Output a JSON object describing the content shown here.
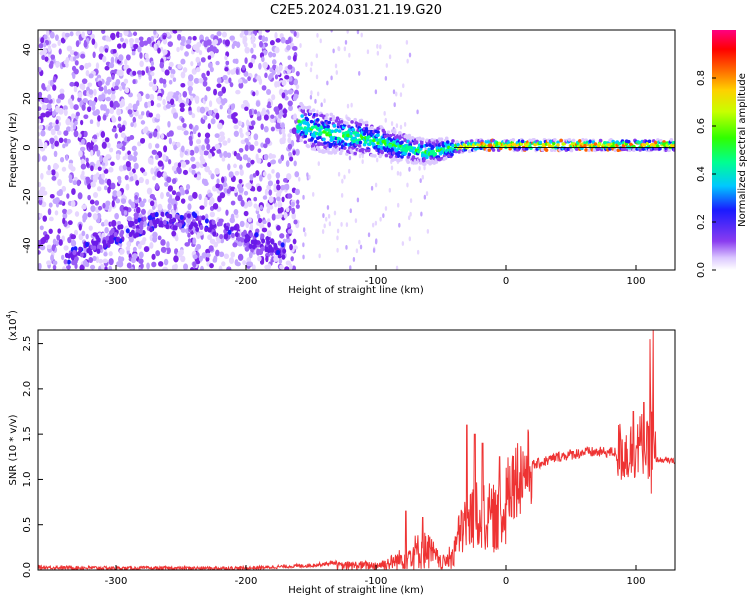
{
  "title": "C2E5.2024.031.21.19.G20",
  "chart_data": [
    {
      "type": "heatmap",
      "xlabel": "Height of straight line (km)",
      "ylabel": "Frequency (Hz)",
      "xlim": [
        -360,
        130
      ],
      "ylim": [
        -50,
        48
      ],
      "xticks": [
        -300,
        -200,
        -100,
        0,
        100
      ],
      "yticks": [
        -40,
        -20,
        0,
        20,
        40
      ],
      "colorbar": {
        "label": "Normalized spectral amplitude",
        "range": [
          0,
          1
        ],
        "ticks": [
          0.0,
          0.2,
          0.4,
          0.6,
          0.8
        ]
      },
      "features": {
        "noise_region_x": [
          -360,
          -160
        ],
        "trace_segments": [
          [
            -340,
            -46
          ],
          [
            -300,
            -36
          ],
          [
            -270,
            -30
          ],
          [
            -240,
            -30
          ],
          [
            -210,
            -35
          ],
          [
            -170,
            -42
          ]
        ],
        "ridge": [
          [
            -160,
            10
          ],
          [
            -140,
            6
          ],
          [
            -110,
            4
          ],
          [
            -80,
            0
          ],
          [
            -60,
            -2
          ],
          [
            -40,
            0
          ],
          [
            -20,
            1
          ],
          [
            0,
            1
          ],
          [
            50,
            1
          ],
          [
            100,
            1
          ],
          [
            130,
            1
          ]
        ]
      }
    },
    {
      "type": "line",
      "xlabel": "Height of straight line (km)",
      "ylabel": "SNR (10 * v/v)",
      "y_multiplier": "(x10",
      "y_multiplier_exp": "4",
      "y_multiplier_close": ")",
      "xlim": [
        -360,
        130
      ],
      "ylim": [
        0,
        2.65
      ],
      "xticks": [
        -300,
        -200,
        -100,
        0,
        100
      ],
      "yticks": [
        0.0,
        0.5,
        1.0,
        1.5,
        2.0,
        2.5
      ],
      "series": [
        {
          "color": "#ee3333",
          "envelope": [
            [
              -360,
              0.03
            ],
            [
              -300,
              0.02
            ],
            [
              -200,
              0.02
            ],
            [
              -150,
              0.05
            ],
            [
              -120,
              0.1
            ],
            [
              -100,
              0.1
            ],
            [
              -90,
              0.15
            ],
            [
              -80,
              0.25
            ],
            [
              -70,
              0.4
            ],
            [
              -60,
              0.45
            ],
            [
              -50,
              0.15
            ],
            [
              -45,
              0.2
            ],
            [
              -40,
              0.4
            ],
            [
              -35,
              0.7
            ],
            [
              -30,
              0.9
            ],
            [
              -20,
              1.0
            ],
            [
              -10,
              0.95
            ],
            [
              0,
              0.95
            ],
            [
              10,
              1.05
            ],
            [
              20,
              1.15
            ],
            [
              30,
              1.2
            ],
            [
              40,
              1.25
            ],
            [
              60,
              1.3
            ],
            [
              80,
              1.3
            ],
            [
              95,
              1.3
            ],
            [
              100,
              1.35
            ],
            [
              105,
              1.4
            ],
            [
              110,
              1.25
            ],
            [
              115,
              1.22
            ],
            [
              130,
              1.2
            ]
          ],
          "spikes": [
            [
              -77,
              0.65
            ],
            [
              -64,
              0.58
            ],
            [
              -30,
              1.6
            ],
            [
              -24,
              1.5
            ],
            [
              -18,
              1.4
            ],
            [
              -5,
              1.25
            ],
            [
              98,
              1.75
            ],
            [
              106,
              1.85
            ],
            [
              111,
              2.55
            ],
            [
              113,
              2.65
            ]
          ]
        }
      ]
    }
  ]
}
